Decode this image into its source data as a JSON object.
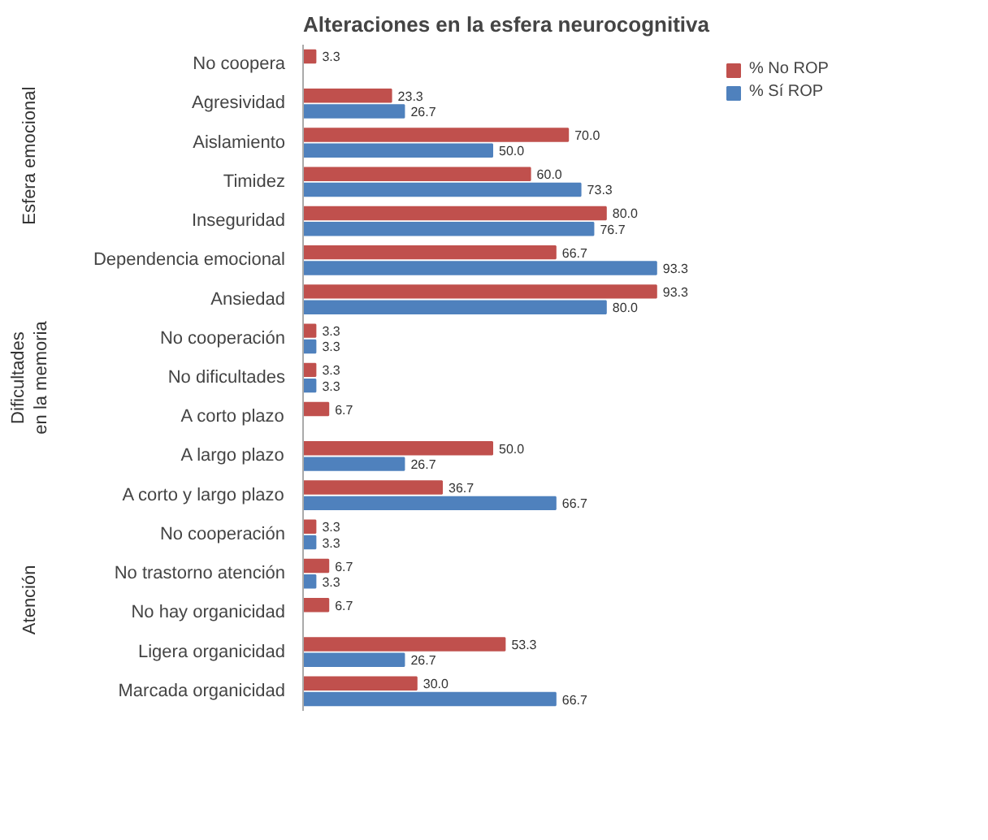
{
  "chart_data": {
    "type": "bar",
    "orientation": "horizontal",
    "title": "Alteraciones en la esfera neurocognitiva",
    "categories": [
      "No coopera",
      "Agresividad",
      "Aislamiento",
      "Timidez",
      "Inseguridad",
      "Dependencia emocional",
      "Ansiedad",
      "No cooperación",
      "No dificultades",
      "A corto plazo",
      "A largo plazo",
      "A corto y largo plazo",
      "No cooperación",
      "No trastorno atención",
      "No hay organicidad",
      "Ligera organicidad",
      "Marcada organicidad"
    ],
    "series": [
      {
        "name": "% No ROP",
        "color": "#c0504d",
        "values": [
          3.3,
          23.3,
          70.0,
          60.0,
          80.0,
          66.7,
          93.3,
          3.3,
          3.3,
          6.7,
          50.0,
          36.7,
          3.3,
          6.7,
          6.7,
          53.3,
          30.0
        ],
        "value_labels": [
          "3.3",
          "23.3",
          "70.0",
          "60.0",
          "80.0",
          "66.7",
          "93.3",
          "3.3",
          "3.3",
          "6.7",
          "50.0",
          "36.7",
          "3.3",
          "6.7",
          "6.7",
          "53.3",
          "30.0"
        ]
      },
      {
        "name": "% Sí ROP",
        "color": "#4f81bd",
        "values": [
          null,
          26.7,
          50.0,
          73.3,
          76.7,
          93.3,
          80.0,
          3.3,
          3.3,
          null,
          26.7,
          66.7,
          3.3,
          3.3,
          null,
          26.7,
          66.7
        ],
        "value_labels": [
          null,
          "26.7",
          "50.0",
          "73.3",
          "76.7",
          "93.3",
          "80.0",
          "3.3",
          "3.3",
          null,
          "26.7",
          "66.7",
          "3.3",
          "3.3",
          null,
          "26.7",
          "66.7"
        ]
      }
    ],
    "annotations": [
      "Esfera emocional",
      "Dificultades en la memoria",
      "Atención"
    ],
    "legend": "right",
    "grid": false
  }
}
